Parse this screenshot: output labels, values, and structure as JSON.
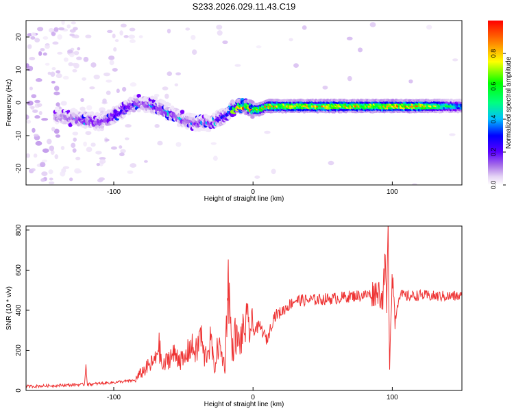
{
  "title": "S233.2026.029.11.43.C19",
  "chart_data": [
    {
      "type": "heatmap",
      "title": "S233.2026.029.11.43.C19",
      "xlabel": "Height of straight line (km)",
      "ylabel": "Frequency (Hz)",
      "xlim": [
        -163,
        150
      ],
      "ylim": [
        -25,
        25
      ],
      "xticks": [
        -100,
        0,
        100
      ],
      "yticks": [
        -20,
        -10,
        0,
        10,
        20
      ],
      "colorbar": {
        "label": "Normalized spectral amplitude",
        "range": [
          0.0,
          1.0
        ],
        "ticks": [
          0.0,
          0.2,
          0.4,
          0.6,
          0.8
        ],
        "colormap": [
          "#ffffff",
          "#e6d5f5",
          "#b98ae8",
          "#7b00ff",
          "#0000ff",
          "#00bfff",
          "#00ff80",
          "#00ff00",
          "#ffff00",
          "#ff8000",
          "#ff0000"
        ]
      },
      "ridge_frequency_profile": {
        "x": [
          -140,
          -120,
          -110,
          -100,
          -90,
          -80,
          -70,
          -60,
          -50,
          -40,
          -30,
          -20,
          -15,
          -10,
          -5,
          0,
          5,
          10,
          20,
          40,
          60,
          80,
          100,
          120,
          150
        ],
        "frequency": [
          -4,
          -5,
          -6,
          -4,
          -1,
          0,
          -1,
          -3,
          -5,
          -6,
          -6,
          -4,
          -2,
          -1,
          -1,
          -2,
          -2,
          -1,
          -1,
          -1,
          -1,
          -1,
          -1,
          -1,
          -1
        ],
        "amplitude": [
          0.2,
          0.3,
          0.3,
          0.35,
          0.35,
          0.3,
          0.3,
          0.3,
          0.28,
          0.28,
          0.28,
          0.4,
          0.55,
          0.85,
          0.9,
          0.8,
          0.8,
          0.85,
          0.85,
          0.85,
          0.85,
          0.85,
          0.9,
          0.9,
          0.5
        ]
      }
    },
    {
      "type": "line",
      "xlabel": "Height of straight line (km)",
      "ylabel": "SNR (10 * v/v)",
      "xlim": [
        -163,
        150
      ],
      "ylim": [
        0,
        820
      ],
      "xticks": [
        -100,
        0,
        100
      ],
      "yticks": [
        0,
        200,
        400,
        600,
        800
      ],
      "color": "#ee3333",
      "series": [
        {
          "name": "SNR",
          "x": [
            -163,
            -140,
            -121,
            -120,
            -119,
            -100,
            -85,
            -80,
            -75,
            -70,
            -68,
            -65,
            -60,
            -55,
            -50,
            -45,
            -40,
            -38,
            -35,
            -30,
            -28,
            -25,
            -20,
            -18,
            -15,
            -13,
            -10,
            -5,
            0,
            5,
            10,
            15,
            20,
            25,
            30,
            40,
            50,
            60,
            70,
            80,
            85,
            90,
            93,
            95,
            96,
            97,
            98,
            100,
            102,
            105,
            110,
            120,
            130,
            140,
            150
          ],
          "y": [
            20,
            25,
            30,
            130,
            30,
            40,
            50,
            90,
            120,
            150,
            240,
            110,
            170,
            180,
            140,
            220,
            190,
            300,
            160,
            250,
            100,
            230,
            120,
            580,
            180,
            280,
            230,
            330,
            300,
            320,
            250,
            370,
            390,
            420,
            450,
            450,
            455,
            460,
            470,
            475,
            480,
            500,
            450,
            650,
            400,
            830,
            150,
            600,
            350,
            480,
            470,
            475,
            470,
            470,
            470
          ]
        }
      ]
    }
  ]
}
